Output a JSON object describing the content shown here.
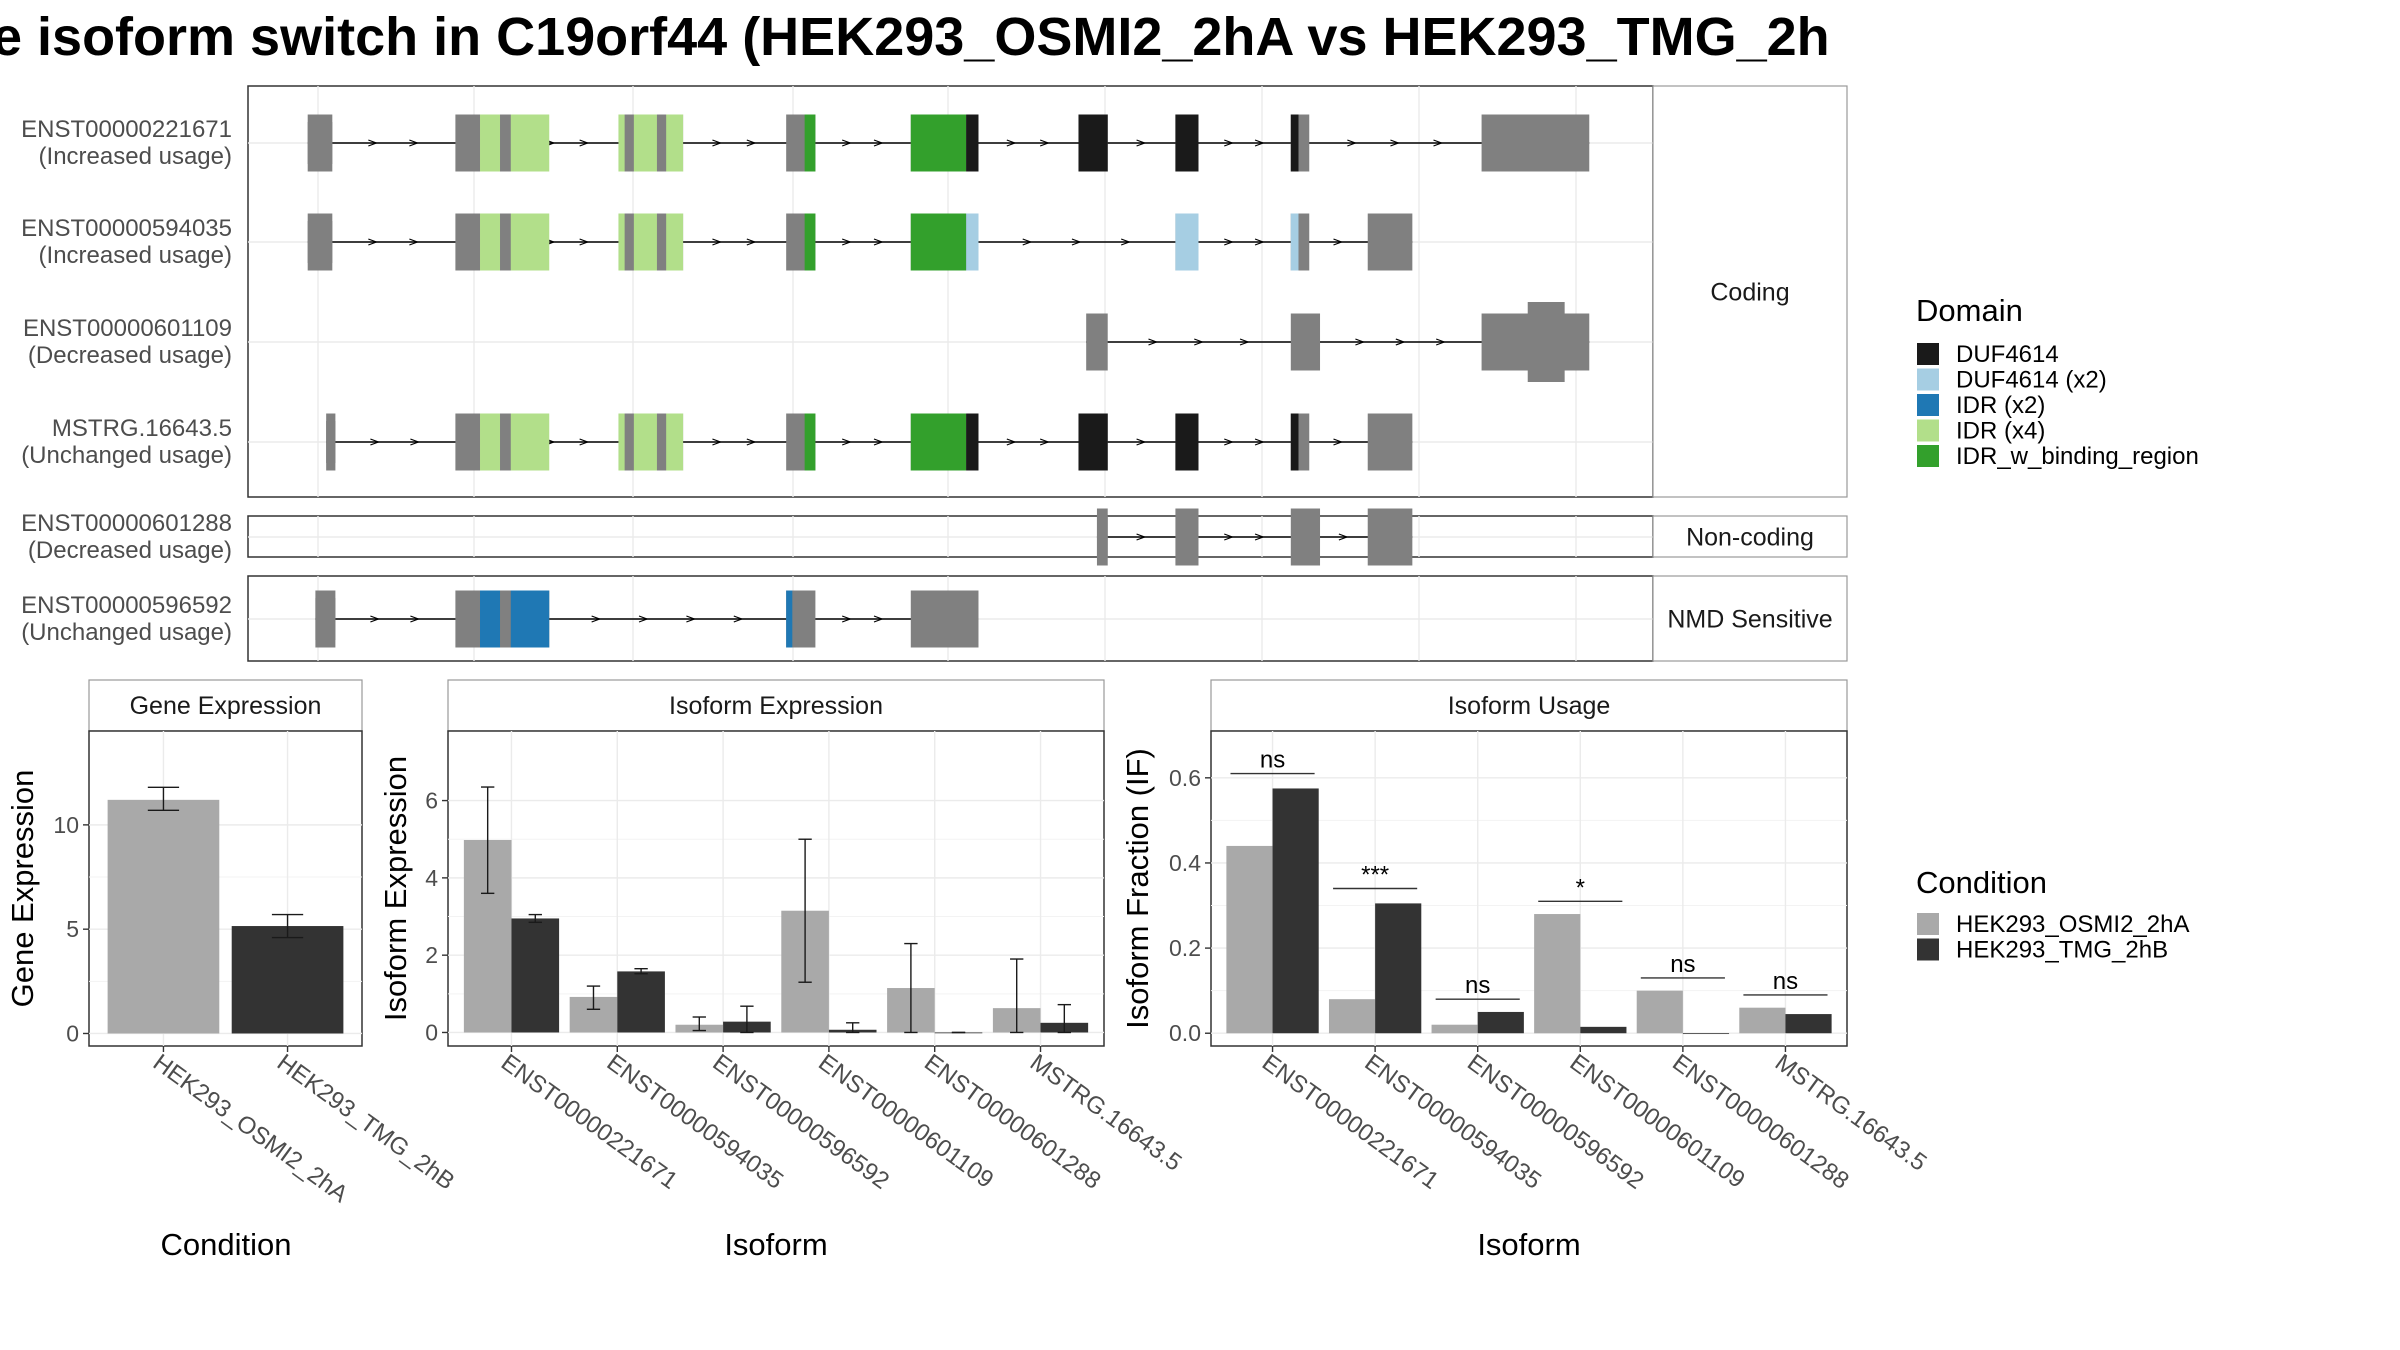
{
  "title": "e isoform switch in C19orf44 (HEK293_OSMI2_2hA vs HEK293_TMG_2h",
  "colors": {
    "exon": "#808080",
    "DUF4614": "#1a1a1a",
    "DUF4614 (x2)": "#a6cee3",
    "IDR (x2)": "#1f78b4",
    "IDR (x4)": "#b2df8a",
    "IDR_w_binding_region": "#33a02c",
    "condA": "#a9a9a9",
    "condB": "#333333"
  },
  "domain_legend": {
    "title": "Domain",
    "items": [
      "DUF4614",
      "DUF4614 (x2)",
      "IDR (x2)",
      "IDR (x4)",
      "IDR_w_binding_region"
    ]
  },
  "condition_legend": {
    "title": "Condition",
    "items": [
      "HEK293_OSMI2_2hA",
      "HEK293_TMG_2hB"
    ]
  },
  "transcript_panels": [
    {
      "label": "Coding",
      "transcripts": [
        {
          "id": "ENST00000221671",
          "status": "(Increased usage)",
          "exons": [
            [
              200,
              216
            ],
            [
              296,
              336
            ],
            [
              402,
              444
            ],
            [
              511,
              530
            ],
            [
              592,
              636
            ],
            [
              701,
              720
            ],
            [
              764,
              779
            ],
            [
              839,
              851
            ],
            [
              963,
              1033
            ]
          ],
          "domains": [
            {
              "s": 312,
              "e": 325,
              "d": "IDR (x4)"
            },
            {
              "s": 332,
              "e": 357,
              "d": "IDR (x4)"
            },
            {
              "s": 402,
              "e": 406,
              "d": "IDR (x4)"
            },
            {
              "s": 412,
              "e": 427,
              "d": "IDR (x4)"
            },
            {
              "s": 433,
              "e": 444,
              "d": "IDR (x4)"
            },
            {
              "s": 523,
              "e": 530,
              "d": "IDR_w_binding_region"
            },
            {
              "s": 592,
              "e": 628,
              "d": "IDR_w_binding_region"
            },
            {
              "s": 628,
              "e": 636,
              "d": "DUF4614"
            },
            {
              "s": 701,
              "e": 720,
              "d": "DUF4614"
            },
            {
              "s": 764,
              "e": 779,
              "d": "DUF4614"
            },
            {
              "s": 839,
              "e": 844,
              "d": "DUF4614"
            }
          ],
          "tall": []
        },
        {
          "id": "ENST00000594035",
          "status": "(Increased usage)",
          "exons": [
            [
              200,
              216
            ],
            [
              296,
              336
            ],
            [
              402,
              444
            ],
            [
              511,
              530
            ],
            [
              592,
              636
            ],
            [
              764,
              779
            ],
            [
              839,
              851
            ],
            [
              889,
              918
            ]
          ],
          "domains": [
            {
              "s": 312,
              "e": 325,
              "d": "IDR (x4)"
            },
            {
              "s": 332,
              "e": 357,
              "d": "IDR (x4)"
            },
            {
              "s": 402,
              "e": 406,
              "d": "IDR (x4)"
            },
            {
              "s": 412,
              "e": 427,
              "d": "IDR (x4)"
            },
            {
              "s": 433,
              "e": 444,
              "d": "IDR (x4)"
            },
            {
              "s": 523,
              "e": 530,
              "d": "IDR_w_binding_region"
            },
            {
              "s": 592,
              "e": 628,
              "d": "IDR_w_binding_region"
            },
            {
              "s": 628,
              "e": 636,
              "d": "DUF4614 (x2)"
            },
            {
              "s": 764,
              "e": 779,
              "d": "DUF4614 (x2)"
            },
            {
              "s": 839,
              "e": 844,
              "d": "DUF4614 (x2)"
            }
          ],
          "tall": []
        },
        {
          "id": "ENST00000601109",
          "status": "(Decreased usage)",
          "exons": [
            [
              706,
              720
            ],
            [
              839,
              858
            ],
            [
              963,
              1033
            ]
          ],
          "domains": [],
          "tall": [
            [
              993,
              1017
            ]
          ]
        },
        {
          "id": "MSTRG.16643.5",
          "status": "(Unchanged usage)",
          "exons": [
            [
              212,
              218
            ],
            [
              296,
              336
            ],
            [
              402,
              444
            ],
            [
              511,
              530
            ],
            [
              592,
              636
            ],
            [
              701,
              720
            ],
            [
              764,
              779
            ],
            [
              839,
              851
            ],
            [
              889,
              918
            ]
          ],
          "domains": [
            {
              "s": 312,
              "e": 325,
              "d": "IDR (x4)"
            },
            {
              "s": 332,
              "e": 357,
              "d": "IDR (x4)"
            },
            {
              "s": 402,
              "e": 406,
              "d": "IDR (x4)"
            },
            {
              "s": 412,
              "e": 427,
              "d": "IDR (x4)"
            },
            {
              "s": 433,
              "e": 444,
              "d": "IDR (x4)"
            },
            {
              "s": 523,
              "e": 530,
              "d": "IDR_w_binding_region"
            },
            {
              "s": 592,
              "e": 628,
              "d": "IDR_w_binding_region"
            },
            {
              "s": 628,
              "e": 636,
              "d": "DUF4614"
            },
            {
              "s": 701,
              "e": 720,
              "d": "DUF4614"
            },
            {
              "s": 764,
              "e": 779,
              "d": "DUF4614"
            },
            {
              "s": 839,
              "e": 844,
              "d": "DUF4614"
            }
          ],
          "tall": []
        }
      ]
    },
    {
      "label": "Non-coding",
      "transcripts": [
        {
          "id": "ENST00000601288",
          "status": "(Decreased usage)",
          "exons": [
            [
              713,
              720
            ],
            [
              764,
              779
            ],
            [
              839,
              858
            ],
            [
              889,
              918
            ]
          ],
          "domains": [],
          "tall": []
        }
      ]
    },
    {
      "label": "NMD Sensitive",
      "transcripts": [
        {
          "id": "ENST00000596592",
          "status": "(Unchanged usage)",
          "exons": [
            [
              205,
              218
            ],
            [
              296,
              357
            ],
            [
              511,
              530
            ],
            [
              592,
              636
            ]
          ],
          "domains": [
            {
              "s": 312,
              "e": 325,
              "d": "IDR (x2)"
            },
            {
              "s": 332,
              "e": 357,
              "d": "IDR (x2)"
            },
            {
              "s": 511,
              "e": 515,
              "d": "IDR (x2)"
            }
          ],
          "tall": []
        }
      ]
    }
  ],
  "chart_data": [
    {
      "type": "bar",
      "title": "Gene Expression",
      "xlabel": "Condition",
      "ylabel": "Gene Expression",
      "categories": [
        "HEK293_OSMI2_2hA",
        "HEK293_TMG_2hB"
      ],
      "values": [
        11.2,
        5.15
      ],
      "errors": [
        [
          10.7,
          11.8
        ],
        [
          4.6,
          5.7
        ]
      ],
      "ylim": [
        -0.6,
        14.5
      ],
      "yticks": [
        0,
        5,
        10
      ]
    },
    {
      "type": "bar",
      "title": "Isoform Expression",
      "xlabel": "Isoform",
      "ylabel": "Isoform Expression",
      "categories": [
        "ENST00000221671",
        "ENST00000594035",
        "ENST00000596592",
        "ENST00000601109",
        "ENST00000601288",
        "MSTRG.16643.5"
      ],
      "series": [
        {
          "name": "HEK293_OSMI2_2hA",
          "values": [
            4.98,
            0.92,
            0.2,
            3.15,
            1.15,
            0.63
          ],
          "errors": [
            [
              3.6,
              6.35
            ],
            [
              0.6,
              1.2
            ],
            [
              0.05,
              0.4
            ],
            [
              1.3,
              5.0
            ],
            [
              0.0,
              2.3
            ],
            [
              0.0,
              1.9
            ]
          ]
        },
        {
          "name": "HEK293_TMG_2hB",
          "values": [
            2.95,
            1.58,
            0.28,
            0.07,
            0.0,
            0.25
          ],
          "errors": [
            [
              2.85,
              3.05
            ],
            [
              1.52,
              1.65
            ],
            [
              0.0,
              0.68
            ],
            [
              0.0,
              0.25
            ],
            [
              0.0,
              0.0
            ],
            [
              0.0,
              0.72
            ]
          ]
        }
      ],
      "ylim": [
        -0.35,
        7.8
      ],
      "yticks": [
        0,
        2,
        4,
        6
      ]
    },
    {
      "type": "bar",
      "title": "Isoform Usage",
      "xlabel": "Isoform",
      "ylabel": "Isoform Fraction (IF)",
      "categories": [
        "ENST00000221671",
        "ENST00000594035",
        "ENST00000596592",
        "ENST00000601109",
        "ENST00000601288",
        "MSTRG.16643.5"
      ],
      "series": [
        {
          "name": "HEK293_OSMI2_2hA",
          "values": [
            0.44,
            0.08,
            0.02,
            0.28,
            0.1,
            0.06
          ]
        },
        {
          "name": "HEK293_TMG_2hB",
          "values": [
            0.575,
            0.305,
            0.05,
            0.015,
            0.0,
            0.045
          ]
        }
      ],
      "significance": [
        {
          "label": "ns",
          "y": 0.61
        },
        {
          "label": "***",
          "y": 0.34
        },
        {
          "label": "ns",
          "y": 0.08
        },
        {
          "label": "*",
          "y": 0.31
        },
        {
          "label": "ns",
          "y": 0.13
        },
        {
          "label": "ns",
          "y": 0.09
        }
      ],
      "ylim": [
        -0.03,
        0.71
      ],
      "yticks": [
        0.0,
        0.2,
        0.4,
        0.6
      ],
      "ytick_labels": [
        "0.0",
        "0.2",
        "0.4",
        "0.6"
      ]
    }
  ]
}
